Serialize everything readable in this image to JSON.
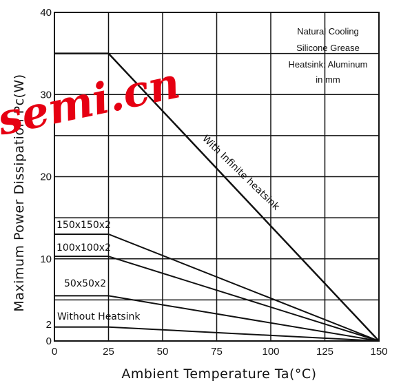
{
  "chart_data": {
    "type": "line",
    "title": "",
    "xlabel": "Ambient Temperature Ta(°C)",
    "ylabel": "Maximum Power Dissipation Pc(W)",
    "xlim": [
      0,
      150
    ],
    "ylim": [
      0,
      40
    ],
    "x_ticks": [
      0,
      25,
      50,
      75,
      100,
      125,
      150
    ],
    "y_ticks": [
      0,
      2,
      10,
      20,
      30,
      40
    ],
    "grid": true,
    "legend": "none",
    "annotation_lines": [
      "Natural Cooling",
      "Silicone Grease",
      "Heatsink: Aluminum",
      "in mm"
    ],
    "series": [
      {
        "name": "With Infinite heatsink",
        "x": [
          0,
          25,
          150
        ],
        "y": [
          35,
          35,
          0
        ]
      },
      {
        "name": "150x150x2",
        "x": [
          0,
          25,
          150
        ],
        "y": [
          13,
          13,
          0
        ]
      },
      {
        "name": "100x100x2",
        "x": [
          0,
          25,
          150
        ],
        "y": [
          10.3,
          10.3,
          0
        ]
      },
      {
        "name": "50x50x2",
        "x": [
          0,
          25,
          150
        ],
        "y": [
          5.5,
          5.5,
          0
        ]
      },
      {
        "name": "Without Heatsink",
        "x": [
          0,
          25,
          150
        ],
        "y": [
          1.7,
          1.7,
          0
        ]
      }
    ],
    "line_color": "#111111",
    "watermark_color": "#e60012"
  },
  "watermark": "semi.cn"
}
